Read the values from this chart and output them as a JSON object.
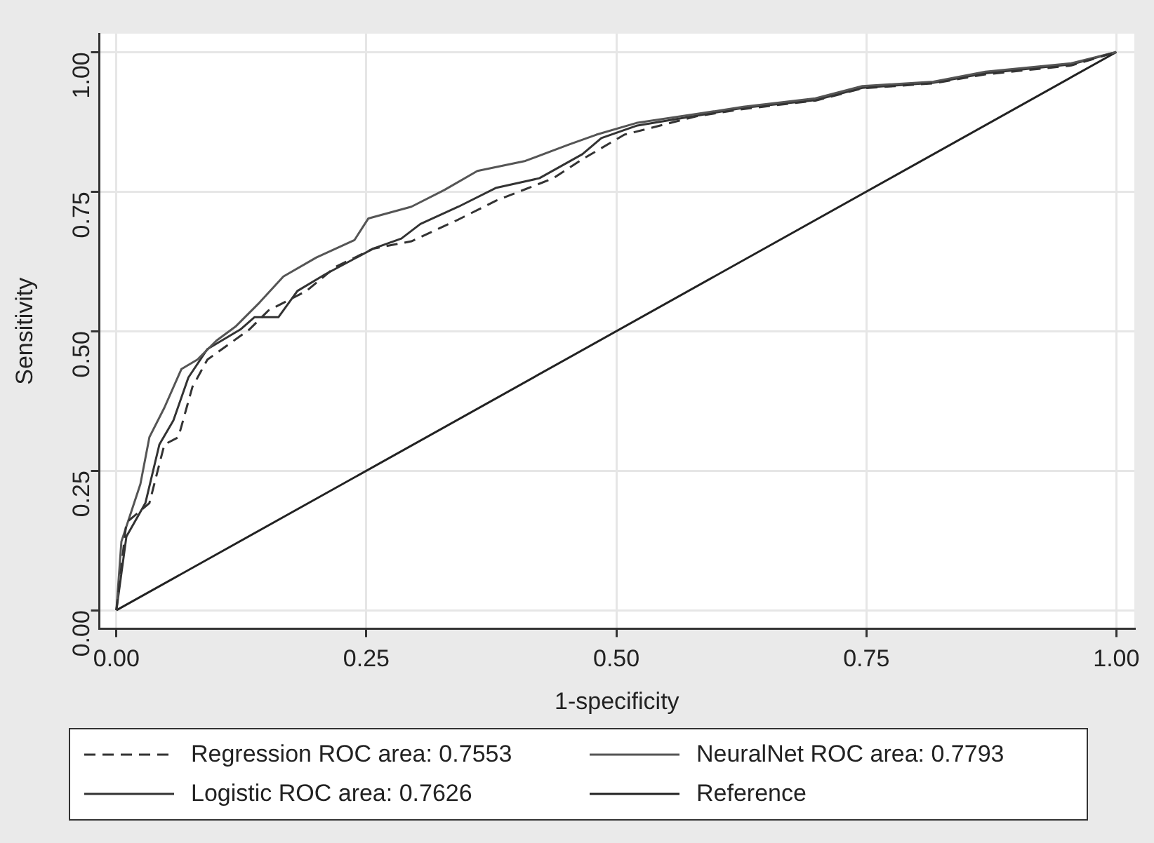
{
  "chart_data": {
    "type": "line",
    "xlabel": "1-specificity",
    "ylabel": "Sensitivity",
    "xlim": [
      -0.017,
      1.018
    ],
    "ylim": [
      -0.033,
      1.033
    ],
    "xticks": [
      {
        "value": 0,
        "label": "0.00"
      },
      {
        "value": 0.25,
        "label": "0.25"
      },
      {
        "value": 0.5,
        "label": "0.50"
      },
      {
        "value": 0.75,
        "label": "0.75"
      },
      {
        "value": 1,
        "label": "1.00"
      }
    ],
    "yticks": [
      {
        "value": 0,
        "label": "0.00"
      },
      {
        "value": 0.25,
        "label": "0.25"
      },
      {
        "value": 0.5,
        "label": "0.50"
      },
      {
        "value": 0.75,
        "label": "0.75"
      },
      {
        "value": 1,
        "label": "1.00"
      }
    ],
    "grid": true,
    "legend": "bottom",
    "marker": "none",
    "series": [
      {
        "name": "Regression ROC area: 0.7553",
        "color": "#333333",
        "line_style": "dashed",
        "x": [
          0,
          0.01,
          0.033,
          0.048,
          0.062,
          0.076,
          0.091,
          0.133,
          0.152,
          0.19,
          0.219,
          0.257,
          0.295,
          0.342,
          0.38,
          0.437,
          0.466,
          0.508,
          0.58,
          0.627,
          0.699,
          0.746,
          0.817,
          0.869,
          0.955,
          1
        ],
        "values": [
          0,
          0.157,
          0.192,
          0.297,
          0.31,
          0.4,
          0.449,
          0.503,
          0.537,
          0.572,
          0.615,
          0.648,
          0.661,
          0.7,
          0.734,
          0.774,
          0.808,
          0.852,
          0.885,
          0.898,
          0.913,
          0.935,
          0.944,
          0.96,
          0.976,
          1
        ]
      },
      {
        "name": "NeuralNet ROC area: 0.7793",
        "color": "#555555",
        "line_style": "solid",
        "x": [
          0,
          0.005,
          0.024,
          0.033,
          0.048,
          0.065,
          0.081,
          0.1,
          0.119,
          0.143,
          0.167,
          0.2,
          0.238,
          0.252,
          0.295,
          0.328,
          0.361,
          0.409,
          0.452,
          0.48,
          0.52,
          0.58,
          0.627,
          0.699,
          0.746,
          0.817,
          0.869,
          0.955,
          1
        ],
        "values": [
          0,
          0.123,
          0.226,
          0.31,
          0.363,
          0.432,
          0.449,
          0.483,
          0.508,
          0.551,
          0.598,
          0.632,
          0.663,
          0.702,
          0.723,
          0.753,
          0.787,
          0.805,
          0.834,
          0.852,
          0.873,
          0.889,
          0.902,
          0.917,
          0.939,
          0.947,
          0.965,
          0.98,
          1
        ]
      },
      {
        "name": "Logistic ROC area: 0.7626",
        "color": "#333333",
        "line_style": "solid",
        "x": [
          0,
          0.01,
          0.029,
          0.043,
          0.057,
          0.072,
          0.091,
          0.124,
          0.138,
          0.162,
          0.181,
          0.209,
          0.257,
          0.285,
          0.304,
          0.342,
          0.38,
          0.423,
          0.466,
          0.485,
          0.52,
          0.58,
          0.627,
          0.699,
          0.746,
          0.817,
          0.869,
          0.955,
          1
        ],
        "values": [
          0,
          0.132,
          0.192,
          0.297,
          0.34,
          0.417,
          0.468,
          0.503,
          0.525,
          0.525,
          0.572,
          0.602,
          0.648,
          0.666,
          0.692,
          0.723,
          0.757,
          0.774,
          0.817,
          0.846,
          0.868,
          0.886,
          0.9,
          0.914,
          0.936,
          0.945,
          0.962,
          0.978,
          1
        ]
      },
      {
        "name": "Reference",
        "color": "#222222",
        "line_style": "solid",
        "x": [
          0,
          1
        ],
        "values": [
          0,
          1
        ]
      }
    ]
  }
}
